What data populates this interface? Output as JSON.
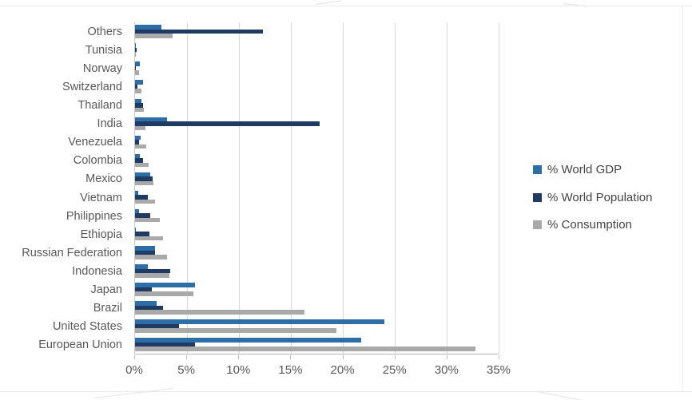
{
  "chart_data": {
    "type": "bar",
    "orientation": "horizontal",
    "title": "",
    "xlabel": "",
    "ylabel": "",
    "categories": [
      "Others",
      "Tunisia",
      "Norway",
      "Switzerland",
      "Thailand",
      "India",
      "Venezuela",
      "Colombia",
      "Mexico",
      "Vietnam",
      "Philippines",
      "Ethiopia",
      "Russian Federation",
      "Indonesia",
      "Japan",
      "Brazil",
      "United States",
      "European Union"
    ],
    "series": [
      {
        "name": "% World GDP",
        "color": "#2d6ea6",
        "values": [
          2.5,
          0.1,
          0.45,
          0.75,
          0.6,
          3.1,
          0.55,
          0.5,
          1.5,
          0.3,
          0.4,
          0.1,
          1.9,
          1.2,
          5.8,
          2.1,
          24.0,
          21.8
        ]
      },
      {
        "name": "% World Population",
        "color": "#1f3a63",
        "values": [
          12.3,
          0.15,
          0.1,
          0.2,
          0.75,
          17.8,
          0.35,
          0.8,
          1.7,
          1.25,
          1.5,
          1.4,
          1.9,
          3.4,
          1.6,
          2.7,
          4.2,
          5.8
        ]
      },
      {
        "name": "% Consumption",
        "color": "#a9a9a9",
        "values": [
          3.6,
          0.1,
          0.35,
          0.65,
          0.85,
          1.0,
          1.1,
          1.3,
          1.8,
          1.9,
          2.4,
          2.7,
          3.1,
          3.3,
          5.6,
          16.3,
          19.4,
          32.8
        ]
      }
    ],
    "x_ticks": [
      "0%",
      "5%",
      "10%",
      "15%",
      "20%",
      "25%",
      "30%",
      "35%"
    ],
    "xlim": [
      0,
      35
    ],
    "grid": true,
    "legend_position": "right"
  },
  "styles": {
    "grid_color": "#d9d9d9",
    "axis_color": "#bfbfbf",
    "label_color": "#595959",
    "legend_text_color": "#454545"
  }
}
